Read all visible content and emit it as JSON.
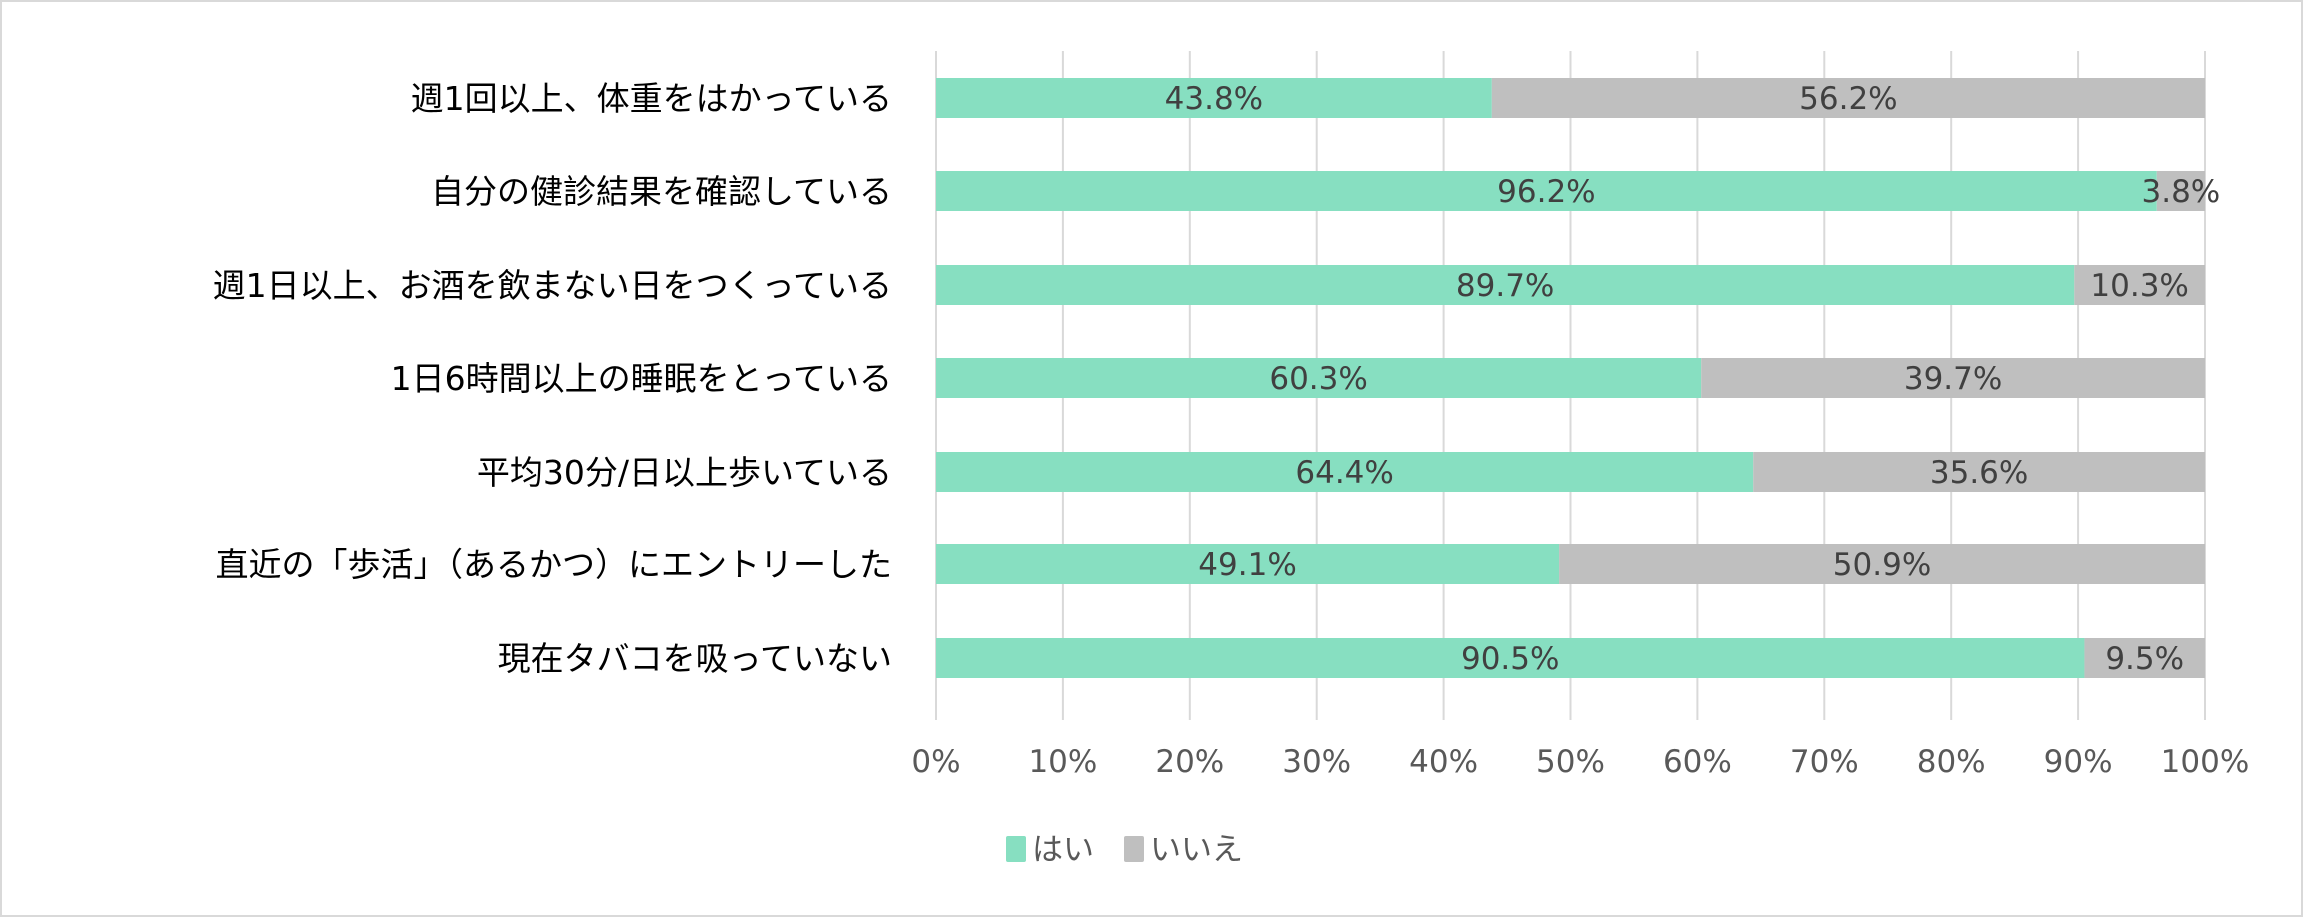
{
  "chart_data": {
    "type": "bar",
    "orientation": "horizontal",
    "stacked": "percent",
    "title": "",
    "categories": [
      "週1回以上、体重をはかっている",
      "自分の健診結果を確認している",
      "週1日以上、お酒を飲まない日をつくっている",
      "1日6時間以上の睡眠をとっている",
      "平均30分/日以上歩いている",
      "直近の「歩活」（あるかつ）にエントリーした",
      "現在タバコを吸っていない"
    ],
    "series": [
      {
        "name": "はい",
        "color": "#87dfc1",
        "values": [
          43.8,
          96.2,
          89.7,
          60.3,
          64.4,
          49.1,
          90.5
        ],
        "labels": [
          "43.8%",
          "96.2%",
          "89.7%",
          "60.3%",
          "64.4%",
          "49.1%",
          "90.5%"
        ]
      },
      {
        "name": "いいえ",
        "color": "#bfbfbf",
        "values": [
          56.2,
          3.8,
          10.3,
          39.7,
          35.6,
          50.9,
          9.5
        ],
        "labels": [
          "56.2%",
          "3.8%",
          "10.3%",
          "39.7%",
          "35.6%",
          "50.9%",
          "9.5%"
        ]
      }
    ],
    "xlim": [
      0,
      100
    ],
    "xticks": [
      "0%",
      "10%",
      "20%",
      "30%",
      "40%",
      "50%",
      "60%",
      "70%",
      "80%",
      "90%",
      "100%"
    ],
    "grid": true,
    "legend": "bottom"
  }
}
